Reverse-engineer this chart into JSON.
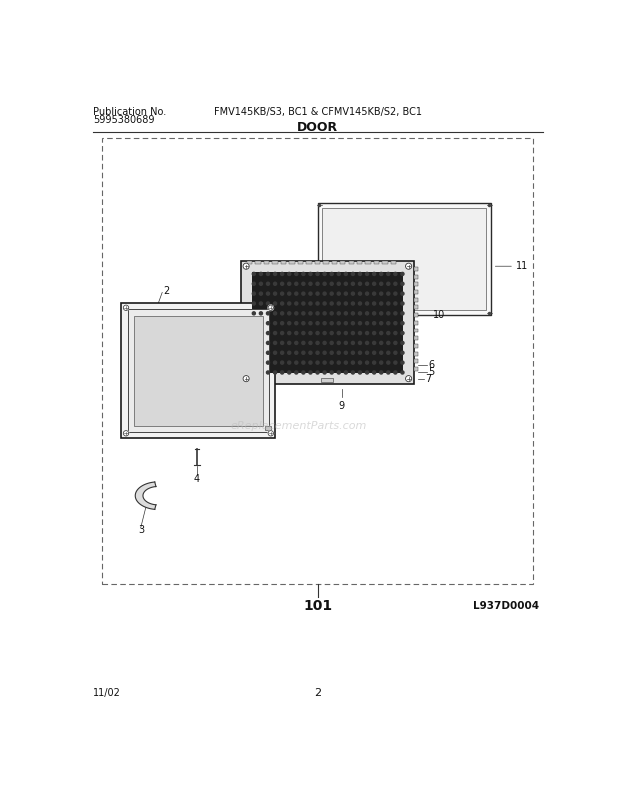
{
  "title_left1": "Publication No.",
  "title_left2": "5995380689",
  "title_center": "FMV145KB/S3, BC1 & CFMV145KB/S2, BC1",
  "section_title": "DOOR",
  "diagram_id": "L937D0004",
  "page_num": "2",
  "date": "11/02",
  "part_num": "101",
  "bg_color": "#ffffff",
  "watermark": "eReplacementParts.com",
  "font_size_header": 7,
  "font_size_labels": 7,
  "font_size_section": 8
}
